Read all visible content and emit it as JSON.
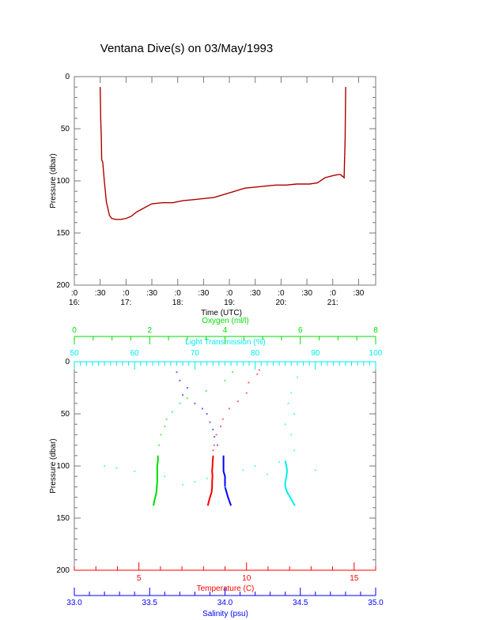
{
  "chart_data": [
    {
      "type": "line",
      "title": "Ventana Dive(s) on 03/May/1993",
      "xlabel": "Time (UTC)",
      "ylabel": "Pressure (dbar)",
      "xlim": [
        16.0,
        21.83
      ],
      "ylim": [
        0,
        200
      ],
      "y_inverted": true,
      "yticks": [
        0,
        50,
        100,
        150,
        200
      ],
      "xticks": [
        {
          "v": 16.0,
          "top": ":0",
          "bottom": "16:"
        },
        {
          "v": 16.5,
          "top": ":30",
          "bottom": ""
        },
        {
          "v": 17.0,
          "top": ":0",
          "bottom": "17:"
        },
        {
          "v": 17.5,
          "top": ":30",
          "bottom": ""
        },
        {
          "v": 18.0,
          "top": ":0",
          "bottom": "18:"
        },
        {
          "v": 18.5,
          "top": ":30",
          "bottom": ""
        },
        {
          "v": 19.0,
          "top": ":0",
          "bottom": "19:"
        },
        {
          "v": 19.5,
          "top": ":30",
          "bottom": ""
        },
        {
          "v": 20.0,
          "top": ":0",
          "bottom": "20:"
        },
        {
          "v": 20.5,
          "top": ":30",
          "bottom": ""
        },
        {
          "v": 21.0,
          "top": ":0",
          "bottom": "21:"
        },
        {
          "v": 21.5,
          "top": ":30",
          "bottom": ""
        }
      ],
      "series": [
        {
          "name": "Pressure",
          "color": "#cc0000",
          "x": [
            16.5,
            16.51,
            16.52,
            16.53,
            16.55,
            16.58,
            16.62,
            16.68,
            16.72,
            16.8,
            16.9,
            17.0,
            17.1,
            17.2,
            17.35,
            17.5,
            17.7,
            17.9,
            18.1,
            18.3,
            18.5,
            18.7,
            18.9,
            19.1,
            19.3,
            19.5,
            19.7,
            19.9,
            20.1,
            20.3,
            20.45,
            20.55,
            20.7,
            20.85,
            21.0,
            21.1,
            21.15,
            21.2,
            21.22,
            21.24,
            21.25
          ],
          "y": [
            10,
            40,
            55,
            80,
            82,
            100,
            120,
            133,
            136,
            137,
            137,
            136,
            134,
            130,
            126,
            122,
            121,
            121,
            119,
            118,
            117,
            116,
            113,
            110,
            107,
            106,
            105,
            104,
            104,
            103,
            103,
            103,
            102,
            97,
            95,
            94,
            94,
            96,
            97,
            60,
            10
          ]
        }
      ]
    },
    {
      "type": "scatter",
      "ylabel": "Pressure (dbar)",
      "ylim": [
        0,
        200
      ],
      "y_inverted": true,
      "yticks": [
        0,
        50,
        100,
        150,
        200
      ],
      "axes": {
        "oxygen": {
          "label": "Oxygen (ml/l)",
          "color": "#00dd00",
          "range": [
            0,
            8
          ],
          "ticks": [
            0,
            2,
            4,
            6,
            8
          ]
        },
        "light": {
          "label": "Light Transmission (%)",
          "color": "#00eeee",
          "range": [
            50,
            100
          ],
          "ticks": [
            50,
            60,
            70,
            80,
            90,
            100
          ]
        },
        "temperature": {
          "label": "Temperature (C)",
          "color": "#ff0000",
          "range": [
            2,
            16
          ],
          "ticks": [
            5,
            10,
            15
          ]
        },
        "salinity": {
          "label": "Salinity (psu)",
          "color": "#0000ff",
          "range": [
            33.0,
            35.0
          ],
          "ticks": [
            "33.0",
            "33.5",
            "34.0",
            "34.5",
            "35.0"
          ]
        }
      },
      "series": [
        {
          "name": "Temperature",
          "axis": "temperature",
          "color": "#ff0000",
          "sparse": [
            [
              8,
              10.6
            ],
            [
              12,
              10.5
            ],
            [
              20,
              10.1
            ],
            [
              30,
              10.0
            ],
            [
              38,
              9.6
            ],
            [
              45,
              9.2
            ],
            [
              55,
              8.9
            ],
            [
              62,
              8.8
            ],
            [
              70,
              8.6
            ],
            [
              80,
              8.5
            ],
            [
              85,
              8.45
            ]
          ],
          "profile": [
            [
              90,
              8.45
            ],
            [
              95,
              8.43
            ],
            [
              100,
              8.42
            ],
            [
              105,
              8.4
            ],
            [
              110,
              8.42
            ],
            [
              115,
              8.4
            ],
            [
              120,
              8.4
            ],
            [
              125,
              8.38
            ],
            [
              130,
              8.3
            ],
            [
              134,
              8.25
            ],
            [
              138,
              8.2
            ]
          ]
        },
        {
          "name": "Salinity",
          "axis": "salinity",
          "color": "#0000ff",
          "sparse": [
            [
              10,
              33.68
            ],
            [
              18,
              33.7
            ],
            [
              25,
              33.75
            ],
            [
              32,
              33.72
            ],
            [
              40,
              33.8
            ],
            [
              45,
              33.85
            ],
            [
              50,
              33.88
            ],
            [
              58,
              33.9
            ],
            [
              65,
              33.92
            ],
            [
              72,
              33.93
            ],
            [
              80,
              33.95
            ]
          ],
          "profile": [
            [
              90,
              33.99
            ],
            [
              95,
              33.99
            ],
            [
              100,
              33.99
            ],
            [
              105,
              33.99
            ],
            [
              110,
              34.0
            ],
            [
              115,
              34.0
            ],
            [
              120,
              34.0
            ],
            [
              125,
              34.01
            ],
            [
              130,
              34.02
            ],
            [
              134,
              34.03
            ],
            [
              138,
              34.04
            ]
          ]
        },
        {
          "name": "Oxygen",
          "axis": "oxygen",
          "color": "#00dd00",
          "sparse": [
            [
              10,
              4.2
            ],
            [
              18,
              4.0
            ],
            [
              28,
              3.5
            ],
            [
              35,
              3.0
            ],
            [
              40,
              2.8
            ],
            [
              48,
              2.6
            ],
            [
              55,
              2.45
            ],
            [
              62,
              2.4
            ],
            [
              70,
              2.3
            ],
            [
              80,
              2.25
            ]
          ],
          "profile": [
            [
              90,
              2.22
            ],
            [
              95,
              2.22
            ],
            [
              100,
              2.2
            ],
            [
              105,
              2.2
            ],
            [
              110,
              2.2
            ],
            [
              115,
              2.2
            ],
            [
              120,
              2.19
            ],
            [
              125,
              2.18
            ],
            [
              130,
              2.15
            ],
            [
              134,
              2.12
            ],
            [
              138,
              2.1
            ]
          ]
        },
        {
          "name": "Light Transmission",
          "axis": "light",
          "color": "#00eeee",
          "sparse": [
            [
              15,
              87
            ],
            [
              30,
              86
            ],
            [
              40,
              85.5
            ],
            [
              50,
              86.5
            ],
            [
              60,
              85
            ],
            [
              70,
              86
            ],
            [
              85,
              86.5
            ],
            [
              100,
              55
            ],
            [
              105,
              60
            ],
            [
              110,
              65
            ],
            [
              115,
              70
            ],
            [
              120,
              75
            ],
            [
              104,
              78
            ],
            [
              108,
              82
            ],
            [
              100,
              80
            ],
            [
              112,
              72
            ],
            [
              96,
              84
            ],
            [
              104,
              90
            ],
            [
              118,
              68
            ],
            [
              102,
              57
            ]
          ],
          "profile": [
            [
              95,
              85
            ],
            [
              100,
              85.2
            ],
            [
              105,
              85.3
            ],
            [
              110,
              85.2
            ],
            [
              115,
              85
            ],
            [
              120,
              85
            ],
            [
              125,
              85.3
            ],
            [
              130,
              85.8
            ],
            [
              134,
              86.2
            ],
            [
              138,
              86.6
            ]
          ]
        }
      ]
    }
  ]
}
